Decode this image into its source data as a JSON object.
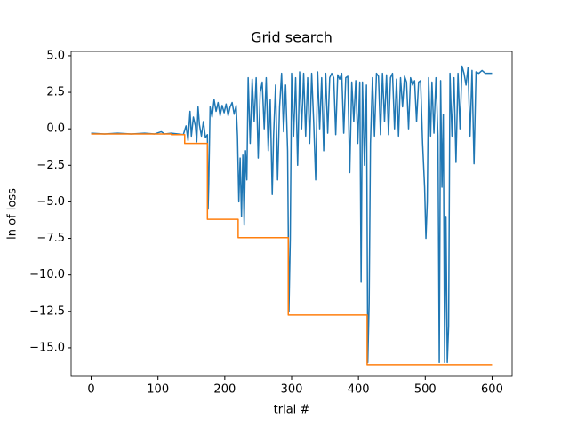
{
  "chart_data": {
    "type": "line",
    "title": "Grid search",
    "xlabel": "trial #",
    "ylabel": "ln of loss",
    "xlim": [
      -30,
      630
    ],
    "ylim": [
      -16.95,
      5.3
    ],
    "xticks": [
      0,
      100,
      200,
      300,
      400,
      500,
      600
    ],
    "yticks": [
      {
        "value": 5.0,
        "label": "5.0"
      },
      {
        "value": 2.5,
        "label": "2.5"
      },
      {
        "value": 0.0,
        "label": "0.0"
      },
      {
        "value": -2.5,
        "label": "−2.5"
      },
      {
        "value": -5.0,
        "label": "−5.0"
      },
      {
        "value": -7.5,
        "label": "−7.5"
      },
      {
        "value": -10.0,
        "label": "−10.0"
      },
      {
        "value": -12.5,
        "label": "−12.5"
      },
      {
        "value": -15.0,
        "label": "−15.0"
      }
    ],
    "series": [
      {
        "color": "#1f77b4",
        "x": [
          0,
          20,
          40,
          60,
          80,
          95,
          105,
          110,
          120,
          130,
          138,
          142,
          145,
          148,
          150,
          153,
          156,
          158,
          160,
          162,
          165,
          168,
          171,
          174,
          175,
          176,
          178,
          181,
          184,
          187,
          190,
          193,
          196,
          199,
          202,
          205,
          208,
          211,
          214,
          217,
          219,
          221,
          223,
          225,
          227,
          229,
          231,
          233,
          235,
          238,
          241,
          244,
          247,
          250,
          253,
          256,
          259,
          262,
          265,
          268,
          271,
          273,
          276,
          279,
          282,
          285,
          288,
          291,
          294,
          296,
          298,
          300,
          303,
          306,
          309,
          312,
          315,
          318,
          321,
          324,
          327,
          330,
          333,
          336,
          339,
          342,
          345,
          348,
          351,
          354,
          357,
          360,
          363,
          366,
          369,
          372,
          375,
          378,
          381,
          384,
          387,
          390,
          393,
          396,
          399,
          402,
          404,
          406,
          409,
          412,
          414,
          416,
          418,
          421,
          424,
          427,
          430,
          433,
          436,
          439,
          442,
          445,
          448,
          451,
          454,
          457,
          460,
          463,
          466,
          469,
          472,
          475,
          478,
          481,
          484,
          487,
          490,
          493,
          496,
          499,
          501,
          503,
          505,
          508,
          510,
          513,
          516,
          519,
          521,
          523,
          525,
          527,
          529,
          531,
          533,
          535,
          537,
          540,
          543,
          546,
          549,
          552,
          555,
          558,
          561,
          564,
          567,
          570,
          573,
          576,
          580,
          585,
          590,
          595,
          600
        ],
        "values": [
          -0.3,
          -0.35,
          -0.3,
          -0.35,
          -0.3,
          -0.35,
          -0.2,
          -0.35,
          -0.3,
          -0.35,
          -0.4,
          0.2,
          -0.8,
          1.2,
          -0.5,
          0.8,
          0.2,
          -0.9,
          1.5,
          0.3,
          -0.5,
          0.5,
          -0.6,
          -0.4,
          -5.5,
          -3.8,
          1.5,
          0.8,
          2.0,
          1.2,
          1.8,
          0.9,
          1.6,
          1.1,
          1.7,
          0.9,
          1.5,
          1.8,
          1.0,
          1.6,
          -0.5,
          -5.0,
          -2.0,
          -6.0,
          -1.8,
          -6.6,
          -1.5,
          -3.5,
          3.5,
          -1.0,
          3.4,
          0.5,
          3.5,
          -2.0,
          2.5,
          3.2,
          0.0,
          3.5,
          -1.5,
          2.0,
          -4.5,
          -0.5,
          3.0,
          -3.5,
          1.5,
          3.8,
          -0.2,
          3.0,
          -1.5,
          -12.5,
          -7.5,
          3.8,
          -0.5,
          3.5,
          -2.5,
          3.9,
          0.0,
          3.8,
          -0.5,
          3.5,
          -1.0,
          3.8,
          0.5,
          -3.5,
          3.9,
          0.0,
          3.5,
          -1.5,
          3.8,
          -0.3,
          3.5,
          3.8,
          3.5,
          -0.4,
          3.7,
          3.4,
          3.8,
          -0.3,
          3.5,
          3.6,
          -3.0,
          3.2,
          0.5,
          3.3,
          -1.0,
          3.2,
          -10.5,
          3.2,
          -2.5,
          3.0,
          -16.0,
          -12.0,
          -1.0,
          3.5,
          -0.5,
          3.8,
          3.6,
          -0.4,
          3.8,
          0.5,
          3.7,
          -0.4,
          3.5,
          3.8,
          0.0,
          3.4,
          -0.5,
          3.5,
          1.5,
          3.6,
          3.2,
          0.0,
          3.5,
          3.0,
          3.3,
          0.5,
          3.2,
          3.3,
          -1.0,
          -4.0,
          -7.5,
          -5.0,
          3.5,
          -0.5,
          3.2,
          -0.3,
          3.5,
          -0.5,
          -16.0,
          3.3,
          -4.0,
          1.0,
          -16.0,
          -6.0,
          -16.0,
          -13.5,
          3.8,
          -0.5,
          3.5,
          -2.3,
          3.8,
          0.0,
          4.3,
          3.8,
          3.0,
          4.2,
          -0.5,
          4.0,
          -2.4,
          3.9,
          3.8,
          4.0,
          3.8,
          3.8,
          3.8
        ]
      },
      {
        "color": "#ff7f0e",
        "x": [
          0,
          120,
          120,
          140,
          140,
          174,
          174,
          220,
          220,
          295,
          295,
          413,
          413,
          600
        ],
        "values": [
          -0.35,
          -0.35,
          -0.4,
          -0.4,
          -1.0,
          -1.0,
          -6.2,
          -6.2,
          -7.45,
          -7.45,
          -12.75,
          -12.75,
          -16.15,
          -16.15
        ]
      }
    ]
  }
}
